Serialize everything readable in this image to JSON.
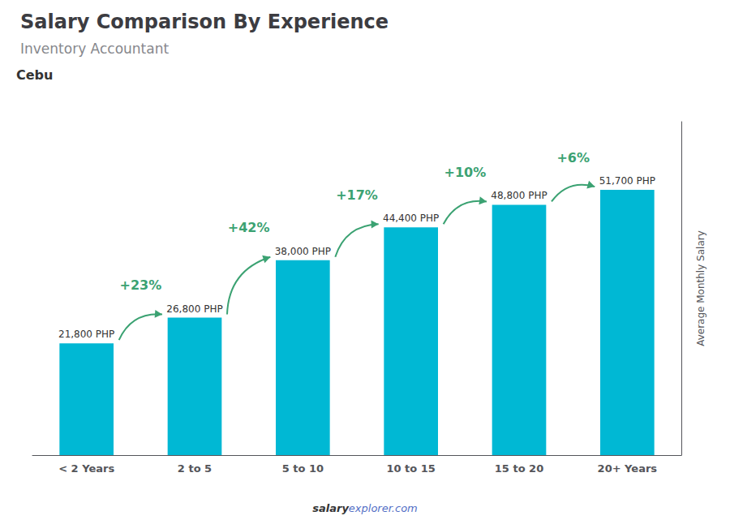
{
  "chart_data": {
    "type": "bar",
    "title": "Salary Comparison By Experience",
    "subtitle": "Inventory Accountant",
    "annotations": [
      "Cebu"
    ],
    "ylabel": "Average Monthly Salary",
    "footer": [
      "salary",
      "explorer.com"
    ],
    "categories": [
      "< 2 Years",
      "2 to 5",
      "5 to 10",
      "10 to 15",
      "15 to 20",
      "20+ Years"
    ],
    "values": [
      21800,
      26800,
      38000,
      44400,
      48800,
      51700
    ],
    "value_labels": [
      "21,800 PHP",
      "26,800 PHP",
      "38,000 PHP",
      "44,400 PHP",
      "48,800 PHP",
      "51,700 PHP"
    ],
    "data_labels": true,
    "change_labels": [
      "+23%",
      "+42%",
      "+17%",
      "+10%",
      "+6%"
    ],
    "color": "#00b8d4",
    "ylim": [
      0,
      65000
    ],
    "tick_labels": "x",
    "grid": false
  }
}
